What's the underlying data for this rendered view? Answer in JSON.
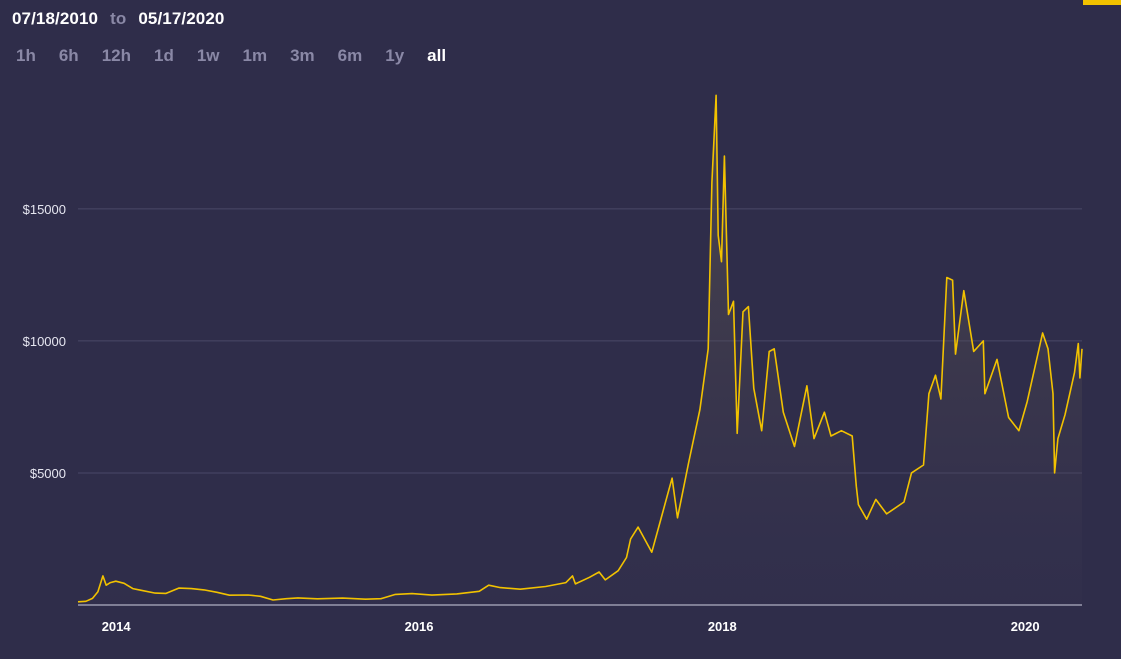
{
  "header": {
    "from_date": "07/18/2010",
    "to_label": "to",
    "to_date": "05/17/2020"
  },
  "periods": [
    "1h",
    "6h",
    "12h",
    "1d",
    "1w",
    "1m",
    "3m",
    "6m",
    "1y",
    "all"
  ],
  "active_period": "all",
  "colors": {
    "background": "#2f2d4a",
    "line": "#f2c200",
    "gridline": "#4a4868",
    "accent": "#f2c200"
  },
  "chart_data": {
    "type": "line",
    "title": "",
    "xlabel": "",
    "ylabel": "",
    "x_ticks": [
      "2014",
      "2016",
      "2018",
      "2020"
    ],
    "y_ticks": [
      "$5000",
      "$10000",
      "$15000"
    ],
    "ylim": [
      0,
      19500
    ],
    "xlim": [
      "2013-10-01",
      "2020-05-17"
    ],
    "grid": true,
    "series": [
      {
        "points": [
          [
            "2013-10-01",
            120
          ],
          [
            "2013-10-20",
            140
          ],
          [
            "2013-11-05",
            250
          ],
          [
            "2013-11-18",
            500
          ],
          [
            "2013-11-30",
            1100
          ],
          [
            "2013-12-08",
            750
          ],
          [
            "2013-12-18",
            850
          ],
          [
            "2013-12-31",
            900
          ],
          [
            "2014-01-20",
            820
          ],
          [
            "2014-02-10",
            620
          ],
          [
            "2014-03-01",
            560
          ],
          [
            "2014-04-05",
            450
          ],
          [
            "2014-05-01",
            440
          ],
          [
            "2014-06-01",
            640
          ],
          [
            "2014-07-01",
            620
          ],
          [
            "2014-08-01",
            570
          ],
          [
            "2014-09-01",
            480
          ],
          [
            "2014-10-01",
            370
          ],
          [
            "2014-11-15",
            380
          ],
          [
            "2014-12-15",
            330
          ],
          [
            "2015-01-14",
            190
          ],
          [
            "2015-02-15",
            240
          ],
          [
            "2015-03-15",
            270
          ],
          [
            "2015-05-01",
            235
          ],
          [
            "2015-07-01",
            260
          ],
          [
            "2015-08-25",
            220
          ],
          [
            "2015-10-01",
            240
          ],
          [
            "2015-11-05",
            400
          ],
          [
            "2015-12-15",
            430
          ],
          [
            "2016-02-01",
            375
          ],
          [
            "2016-04-01",
            420
          ],
          [
            "2016-05-25",
            520
          ],
          [
            "2016-06-17",
            750
          ],
          [
            "2016-07-15",
            660
          ],
          [
            "2016-09-01",
            600
          ],
          [
            "2016-11-01",
            700
          ],
          [
            "2016-12-20",
            850
          ],
          [
            "2017-01-05",
            1100
          ],
          [
            "2017-01-12",
            800
          ],
          [
            "2017-02-15",
            1050
          ],
          [
            "2017-03-10",
            1250
          ],
          [
            "2017-03-25",
            950
          ],
          [
            "2017-04-25",
            1300
          ],
          [
            "2017-05-15",
            1800
          ],
          [
            "2017-05-25",
            2500
          ],
          [
            "2017-06-12",
            2950
          ],
          [
            "2017-07-15",
            2000
          ],
          [
            "2017-08-05",
            3200
          ],
          [
            "2017-08-25",
            4350
          ],
          [
            "2017-09-02",
            4800
          ],
          [
            "2017-09-15",
            3300
          ],
          [
            "2017-10-12",
            5400
          ],
          [
            "2017-11-08",
            7400
          ],
          [
            "2017-11-28",
            9700
          ],
          [
            "2017-12-07",
            16000
          ],
          [
            "2017-12-17",
            19300
          ],
          [
            "2017-12-22",
            14000
          ],
          [
            "2017-12-30",
            13000
          ],
          [
            "2018-01-06",
            17000
          ],
          [
            "2018-01-16",
            11000
          ],
          [
            "2018-01-28",
            11500
          ],
          [
            "2018-02-06",
            6500
          ],
          [
            "2018-02-20",
            11100
          ],
          [
            "2018-03-05",
            11300
          ],
          [
            "2018-03-18",
            8200
          ],
          [
            "2018-04-06",
            6600
          ],
          [
            "2018-04-24",
            9600
          ],
          [
            "2018-05-06",
            9700
          ],
          [
            "2018-05-28",
            7300
          ],
          [
            "2018-06-24",
            6000
          ],
          [
            "2018-07-24",
            8300
          ],
          [
            "2018-08-10",
            6300
          ],
          [
            "2018-09-04",
            7300
          ],
          [
            "2018-09-20",
            6400
          ],
          [
            "2018-10-15",
            6600
          ],
          [
            "2018-11-10",
            6400
          ],
          [
            "2018-11-20",
            4500
          ],
          [
            "2018-11-25",
            3800
          ],
          [
            "2018-12-15",
            3250
          ],
          [
            "2019-01-06",
            4000
          ],
          [
            "2019-02-01",
            3450
          ],
          [
            "2019-03-15",
            3900
          ],
          [
            "2019-04-02",
            5000
          ],
          [
            "2019-05-01",
            5300
          ],
          [
            "2019-05-14",
            8000
          ],
          [
            "2019-05-30",
            8700
          ],
          [
            "2019-06-12",
            7800
          ],
          [
            "2019-06-26",
            12400
          ],
          [
            "2019-07-10",
            12300
          ],
          [
            "2019-07-17",
            9500
          ],
          [
            "2019-08-06",
            11900
          ],
          [
            "2019-08-30",
            9600
          ],
          [
            "2019-09-22",
            10000
          ],
          [
            "2019-09-26",
            8000
          ],
          [
            "2019-10-25",
            9300
          ],
          [
            "2019-11-22",
            7100
          ],
          [
            "2019-12-17",
            6600
          ],
          [
            "2020-01-06",
            7700
          ],
          [
            "2020-02-12",
            10300
          ],
          [
            "2020-02-25",
            9700
          ],
          [
            "2020-03-08",
            8000
          ],
          [
            "2020-03-12",
            5000
          ],
          [
            "2020-03-20",
            6300
          ],
          [
            "2020-04-06",
            7200
          ],
          [
            "2020-04-29",
            8800
          ],
          [
            "2020-05-08",
            9900
          ],
          [
            "2020-05-12",
            8600
          ],
          [
            "2020-05-17",
            9700
          ]
        ]
      }
    ]
  }
}
